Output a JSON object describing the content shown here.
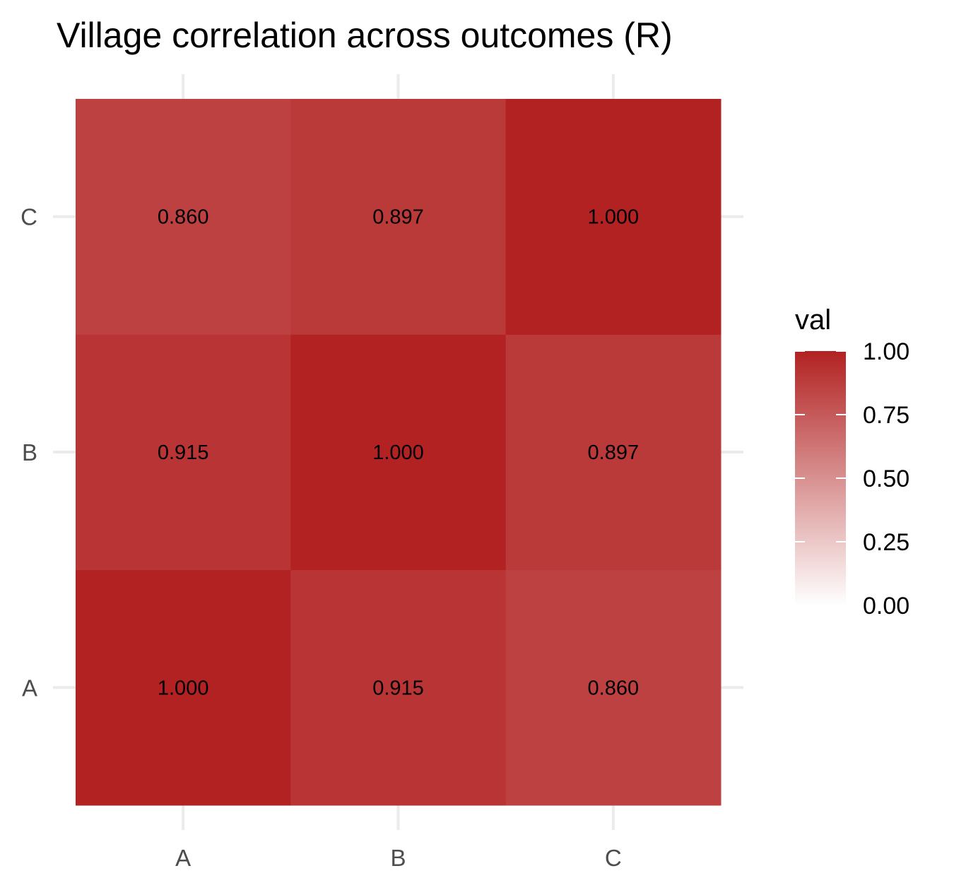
{
  "chart_data": {
    "type": "heatmap",
    "title": "Village correlation across outcomes (R)",
    "xlabel": "",
    "ylabel": "",
    "x_categories": [
      "A",
      "B",
      "C"
    ],
    "y_categories": [
      "A",
      "B",
      "C"
    ],
    "matrix": [
      [
        1.0,
        0.915,
        0.86
      ],
      [
        0.915,
        1.0,
        0.897
      ],
      [
        0.86,
        0.897,
        1.0
      ]
    ],
    "cell_labels": [
      [
        "1.000",
        "0.915",
        "0.860"
      ],
      [
        "0.915",
        "1.000",
        "0.897"
      ],
      [
        "0.860",
        "0.897",
        "1.000"
      ]
    ],
    "legend": {
      "title": "val",
      "ticks": [
        1.0,
        0.75,
        0.5,
        0.25,
        0.0
      ],
      "tick_labels": [
        "1.00",
        "0.75",
        "0.50",
        "0.25",
        "0.00"
      ],
      "range": [
        0,
        1
      ],
      "low_color": "#ffffff",
      "high_color": "#b22222",
      "placement": "right"
    },
    "grid": true
  }
}
